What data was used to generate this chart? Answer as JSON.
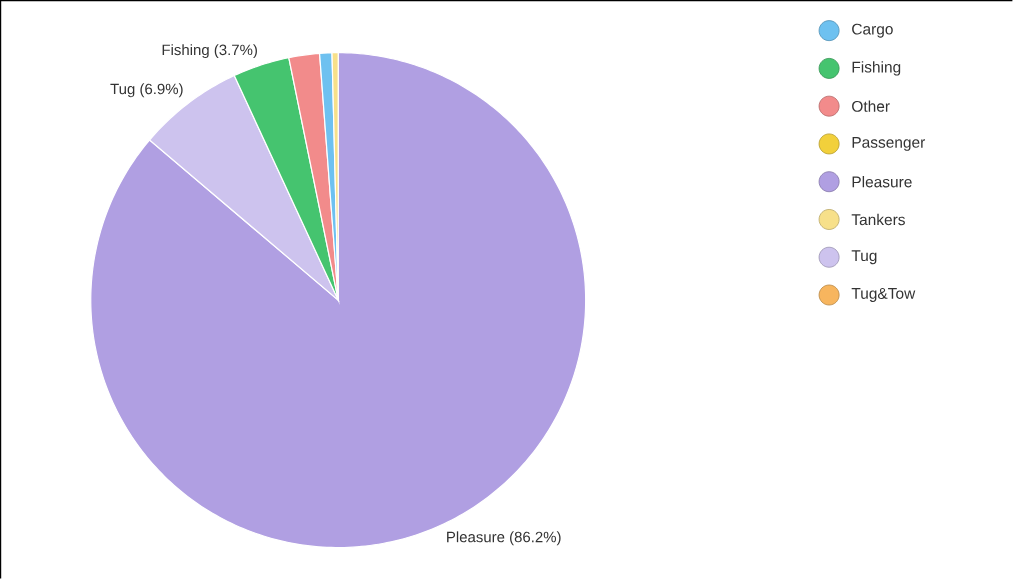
{
  "chart_data": {
    "type": "pie",
    "categories": [
      "Cargo",
      "Fishing",
      "Other",
      "Passenger",
      "Pleasure",
      "Tankers",
      "Tug",
      "Tug&Tow"
    ],
    "values": [
      0.8,
      3.7,
      2.0,
      0,
      86.2,
      0.4,
      6.9,
      0
    ],
    "colors": [
      "#6ec1f0",
      "#45c46f",
      "#f28b8b",
      "#f2d03b",
      "#b09fe2",
      "#f7e08a",
      "#cdc3ee",
      "#f7b55e"
    ],
    "value_labels": [
      null,
      "Fishing (3.7%)",
      null,
      null,
      "Pleasure (86.2%)",
      null,
      "Tug (6.9%)",
      null
    ],
    "legend": "top right"
  }
}
